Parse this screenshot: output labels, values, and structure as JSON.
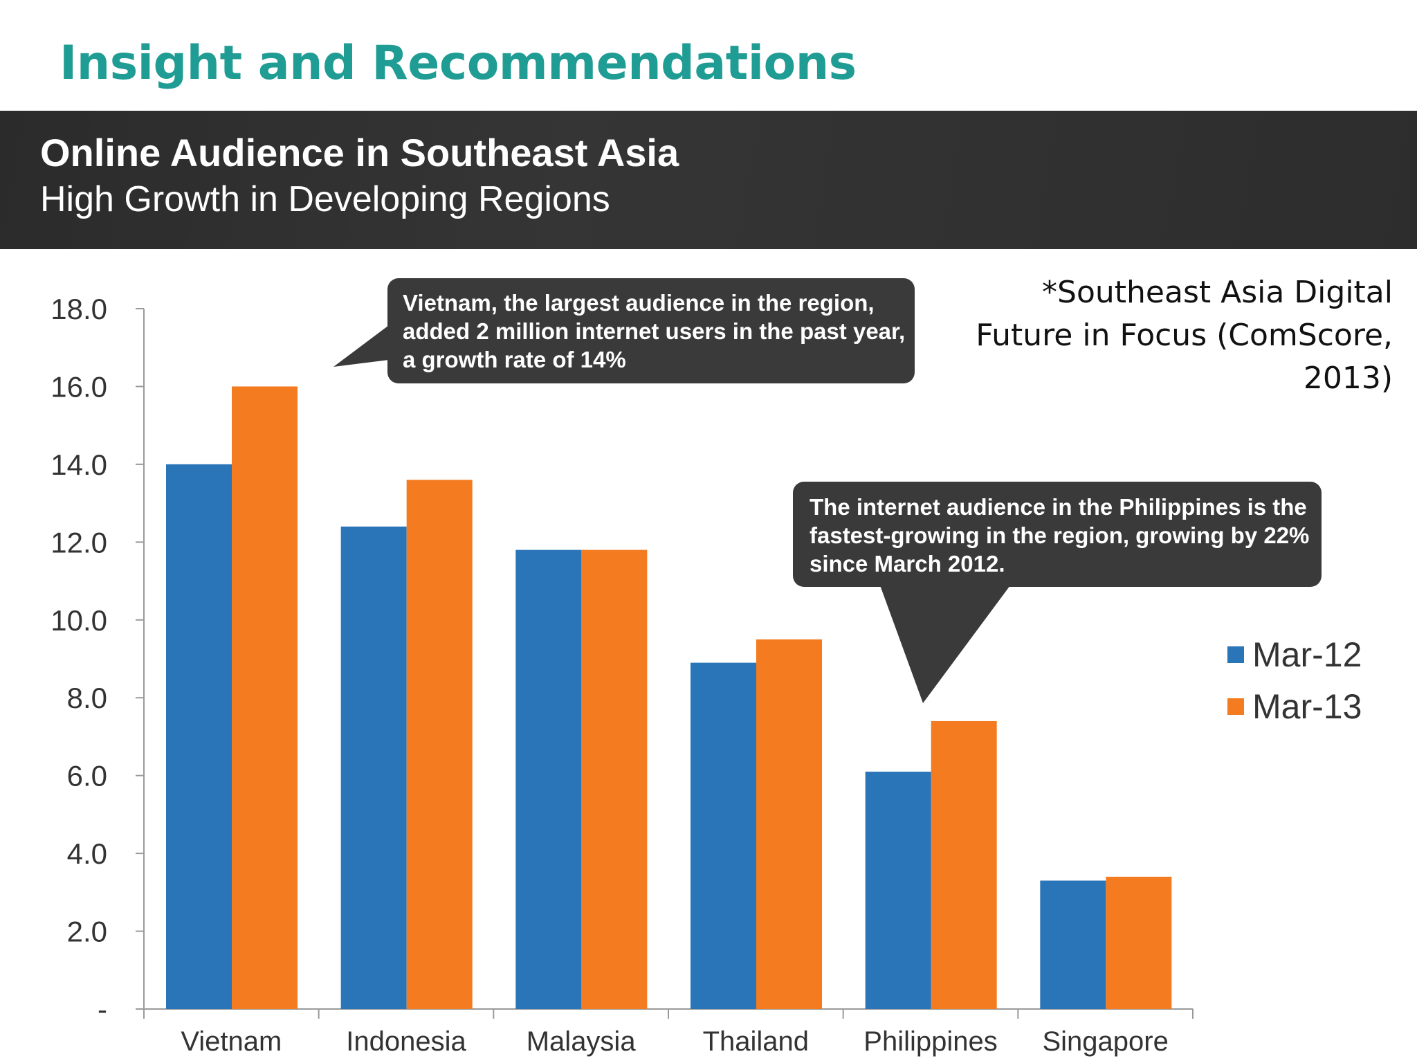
{
  "slide": {
    "title": "Insight and Recommendations",
    "banner_title": "Online Audience in Southeast Asia",
    "banner_subtitle": "High Growth in Developing Regions",
    "source_note": "*Southeast Asia Digital Future in Focus (ComScore, 2013)"
  },
  "callouts": {
    "vietnam": "Vietnam, the largest audience in the region, added 2 million internet users in the past year, a growth rate of 14%",
    "philippines": "The internet audience in the Philippines  is the fastest-growing in the region, growing by 22% since March 2012."
  },
  "colors": {
    "mar12": "#2a74b8",
    "mar13": "#f47b20",
    "title": "#1f9c93",
    "callout": "#3a3a3a"
  },
  "chart_data": {
    "type": "bar",
    "categories": [
      "Vietnam",
      "Indonesia",
      "Malaysia",
      "Thailand",
      "Philippines",
      "Singapore"
    ],
    "series": [
      {
        "name": "Mar-12",
        "values": [
          14.0,
          12.4,
          11.8,
          8.9,
          6.1,
          3.3
        ]
      },
      {
        "name": "Mar-13",
        "values": [
          16.0,
          13.6,
          11.8,
          9.5,
          7.4,
          3.4
        ]
      }
    ],
    "yticks": [
      "-",
      "2.0",
      "4.0",
      "6.0",
      "8.0",
      "10.0",
      "12.0",
      "14.0",
      "16.0",
      "18.0"
    ],
    "ylim": [
      0,
      18
    ],
    "grid": false,
    "legend": "right"
  }
}
